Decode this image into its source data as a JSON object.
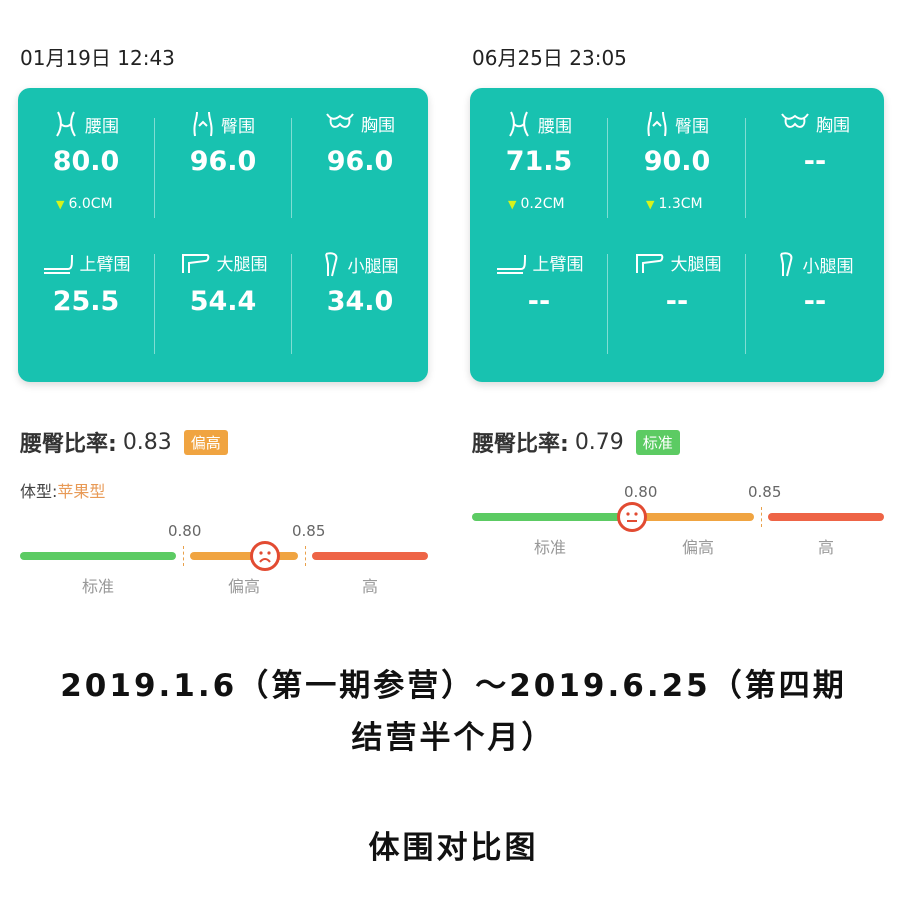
{
  "left": {
    "timestamp": "01月19日 12:43",
    "measurements": [
      {
        "label": "腰围",
        "icon": "waist-icon",
        "value": "80.0",
        "delta": "6.0CM"
      },
      {
        "label": "臀围",
        "icon": "hip-icon",
        "value": "96.0",
        "delta": ""
      },
      {
        "label": "胸围",
        "icon": "chest-icon",
        "value": "96.0",
        "delta": ""
      },
      {
        "label": "上臂围",
        "icon": "upper-arm-icon",
        "value": "25.5",
        "delta": ""
      },
      {
        "label": "大腿围",
        "icon": "thigh-icon",
        "value": "54.4",
        "delta": ""
      },
      {
        "label": "小腿围",
        "icon": "calf-icon",
        "value": "34.0",
        "delta": ""
      }
    ],
    "ratio_label": "腰臀比率:",
    "ratio_value": "0.83",
    "ratio_badge": "偏高",
    "ratio_badge_color": "#f0a441",
    "body_type_label": "体型:",
    "body_type_value": "苹果型",
    "scale": {
      "tick1": "0.80",
      "tick2": "0.85",
      "seg1": "标准",
      "seg2": "偏高",
      "seg3": "高",
      "marker_value": 0.83
    }
  },
  "right": {
    "timestamp": "06月25日 23:05",
    "measurements": [
      {
        "label": "腰围",
        "icon": "waist-icon",
        "value": "71.5",
        "delta": "0.2CM"
      },
      {
        "label": "臀围",
        "icon": "hip-icon",
        "value": "90.0",
        "delta": "1.3CM"
      },
      {
        "label": "胸围",
        "icon": "chest-icon",
        "value": "--",
        "delta": ""
      },
      {
        "label": "上臂围",
        "icon": "upper-arm-icon",
        "value": "--",
        "delta": ""
      },
      {
        "label": "大腿围",
        "icon": "thigh-icon",
        "value": "--",
        "delta": ""
      },
      {
        "label": "小腿围",
        "icon": "calf-icon",
        "value": "--",
        "delta": ""
      }
    ],
    "ratio_label": "腰臀比率:",
    "ratio_value": "0.79",
    "ratio_badge": "标准",
    "ratio_badge_color": "#5ccb63",
    "scale": {
      "tick1": "0.80",
      "tick2": "0.85",
      "seg1": "标准",
      "seg2": "偏高",
      "seg3": "高",
      "marker_value": 0.79
    }
  },
  "captions": {
    "line1": "2019.1.6（第一期参营）～2019.6.25（第四期",
    "line2": "结营半个月）",
    "line3": "体围对比图"
  },
  "colors": {
    "card": "#18c2b0",
    "normal": "#5ccb63",
    "high": "#f0a441",
    "very_high": "#ee6446",
    "body_type": "#e89a56"
  }
}
